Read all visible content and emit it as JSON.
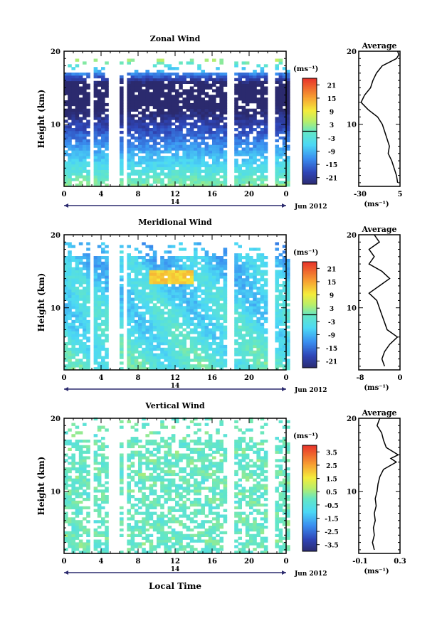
{
  "figure": {
    "xlabel": "Local Time",
    "date_label": "Jun 2012",
    "day_label": "14",
    "average_title": "Average",
    "unit": "(ms⁻¹)",
    "avg_unit": "(ms⁻¹)"
  },
  "chart_data": [
    {
      "type": "heatmap",
      "title": "Zonal Wind",
      "ylabel": "Height (km)",
      "x_ticks": [
        "0",
        "4",
        "8",
        "12",
        "16",
        "20",
        "0"
      ],
      "y_ticks": [
        "20",
        "10"
      ],
      "xlim": [
        0,
        24
      ],
      "ylim": [
        1.5,
        20
      ],
      "colorbar_label": "(ms⁻¹)",
      "colorbar_ticks": [
        "21",
        "15",
        "9",
        "3",
        "-3",
        "-9",
        "-15",
        "-21"
      ],
      "colorbar_range": [
        -24,
        24
      ],
      "field": "zonal",
      "average": {
        "title": "Average",
        "xlabel": "(ms⁻¹)",
        "x_ticks": [
          "-30",
          "5"
        ],
        "y_ticks": [
          "20",
          "10"
        ],
        "xlim": [
          -30,
          5
        ],
        "profile": [
          [
            2,
            3
          ],
          [
            3,
            2
          ],
          [
            4,
            0
          ],
          [
            5,
            -2
          ],
          [
            6,
            -5
          ],
          [
            7,
            -4
          ],
          [
            8,
            -6
          ],
          [
            9,
            -8
          ],
          [
            10,
            -10
          ],
          [
            11,
            -14
          ],
          [
            12,
            -22
          ],
          [
            13,
            -28
          ],
          [
            14,
            -25
          ],
          [
            15,
            -20
          ],
          [
            16,
            -18
          ],
          [
            17,
            -15
          ],
          [
            18,
            -10
          ],
          [
            18.5,
            -4
          ],
          [
            19,
            2
          ],
          [
            19.5,
            4
          ],
          [
            20,
            3
          ]
        ]
      }
    },
    {
      "type": "heatmap",
      "title": "Meridional Wind",
      "ylabel": "Height (km)",
      "x_ticks": [
        "0",
        "4",
        "8",
        "12",
        "16",
        "20",
        "0"
      ],
      "y_ticks": [
        "20",
        "10"
      ],
      "xlim": [
        0,
        24
      ],
      "ylim": [
        1.5,
        20
      ],
      "colorbar_label": "(ms⁻¹)",
      "colorbar_ticks": [
        "21",
        "15",
        "9",
        "3",
        "-3",
        "-9",
        "-15",
        "-21"
      ],
      "colorbar_range": [
        -24,
        24
      ],
      "field": "meridional",
      "average": {
        "title": "Average",
        "xlabel": "(ms⁻¹)",
        "x_ticks": [
          "-8",
          "0"
        ],
        "y_ticks": [
          "20",
          "10"
        ],
        "xlim": [
          -8,
          0
        ],
        "profile": [
          [
            2,
            -3
          ],
          [
            3,
            -3.5
          ],
          [
            4,
            -3
          ],
          [
            5,
            -2
          ],
          [
            6,
            -0.5
          ],
          [
            7,
            -2.5
          ],
          [
            8,
            -3
          ],
          [
            9,
            -3.5
          ],
          [
            10,
            -4
          ],
          [
            11,
            -4.5
          ],
          [
            12,
            -6
          ],
          [
            13,
            -4
          ],
          [
            14,
            -2
          ],
          [
            15,
            -3.5
          ],
          [
            16,
            -6
          ],
          [
            17,
            -5
          ],
          [
            18,
            -6
          ],
          [
            19,
            -4
          ],
          [
            20,
            -5
          ]
        ]
      }
    },
    {
      "type": "heatmap",
      "title": "Vertical Wind",
      "ylabel": "Height (km)",
      "x_ticks": [
        "0",
        "4",
        "8",
        "12",
        "16",
        "20",
        "0"
      ],
      "y_ticks": [
        "20",
        "10"
      ],
      "xlim": [
        0,
        24
      ],
      "ylim": [
        1.5,
        20
      ],
      "colorbar_label": "(ms⁻¹)",
      "colorbar_ticks": [
        "3.5",
        "2.5",
        "1.5",
        "0.5",
        "-0.5",
        "-1.5",
        "-2.5",
        "-3.5"
      ],
      "colorbar_range": [
        -4,
        4
      ],
      "field": "vertical",
      "average": {
        "title": "Average",
        "xlabel": "(ms⁻¹)",
        "x_ticks": [
          "-0.1",
          "0.3"
        ],
        "y_ticks": [
          "20",
          "10"
        ],
        "xlim": [
          -0.15,
          0.3
        ],
        "profile": [
          [
            2,
            0.02
          ],
          [
            3,
            0.0
          ],
          [
            4,
            0.02
          ],
          [
            5,
            0.01
          ],
          [
            6,
            0.03
          ],
          [
            7,
            0.02
          ],
          [
            8,
            0.04
          ],
          [
            9,
            0.03
          ],
          [
            10,
            0.05
          ],
          [
            11,
            0.06
          ],
          [
            12,
            0.08
          ],
          [
            13,
            0.12
          ],
          [
            14,
            0.26
          ],
          [
            14.5,
            0.2
          ],
          [
            15,
            0.28
          ],
          [
            16,
            0.15
          ],
          [
            17,
            0.12
          ],
          [
            18,
            0.1
          ],
          [
            19,
            0.05
          ],
          [
            20,
            0.08
          ]
        ]
      }
    }
  ]
}
